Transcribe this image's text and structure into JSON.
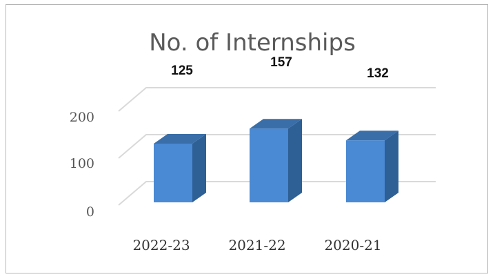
{
  "chart_data": {
    "type": "bar",
    "title": "No. of Internships",
    "categories": [
      "2022-23",
      "2021-22",
      "2020-21"
    ],
    "values": [
      125,
      157,
      132
    ],
    "data_labels": [
      "125",
      "157",
      "132"
    ],
    "yticks": [
      "0",
      "100",
      "200"
    ],
    "ylim": [
      0,
      200
    ],
    "grid": true,
    "legend": "none",
    "style": "3d-column",
    "colors": {
      "bar_front": "#4a89d3",
      "bar_side": "#2e5f95",
      "bar_top": "#3a6ea8",
      "grid": "#d9d9d9"
    }
  }
}
